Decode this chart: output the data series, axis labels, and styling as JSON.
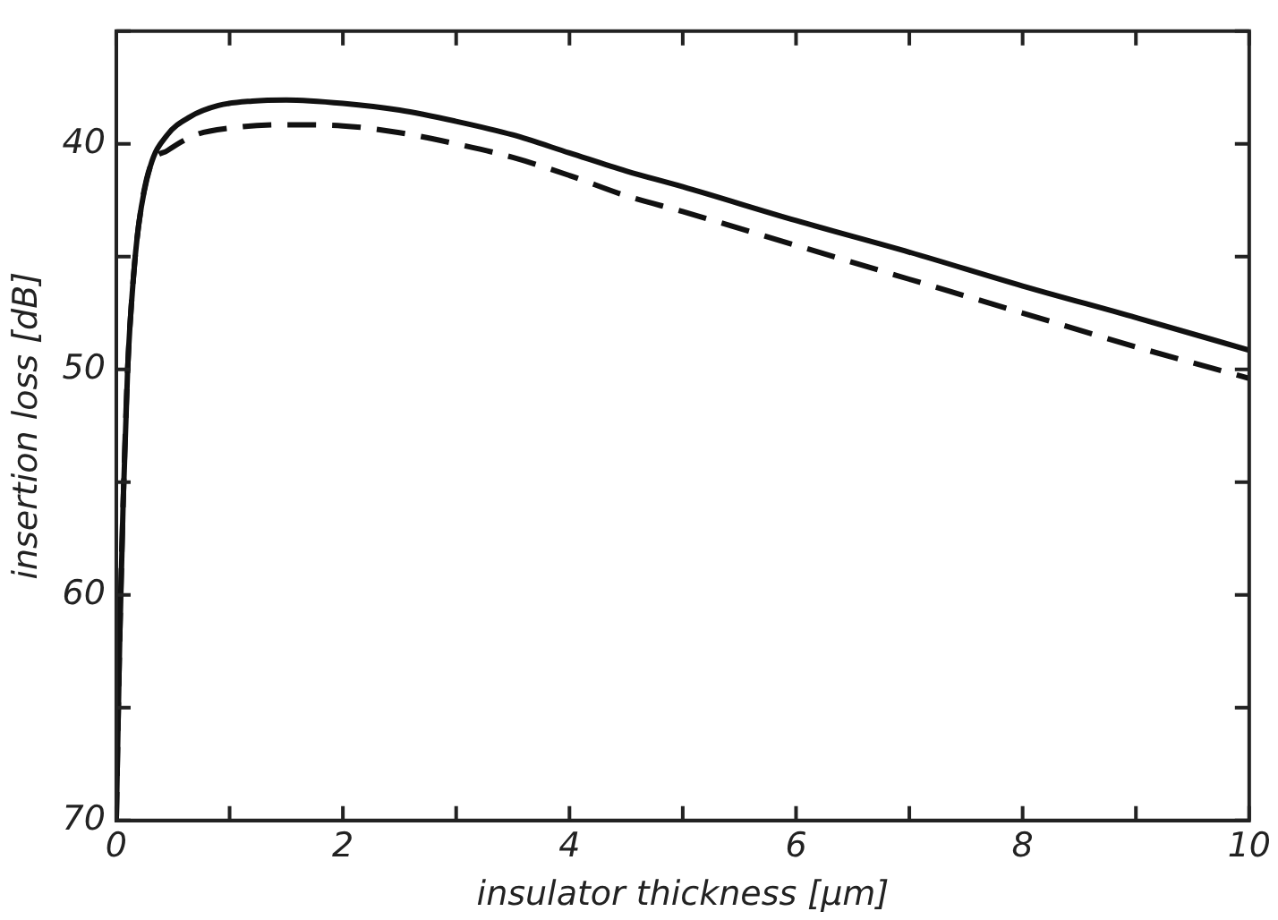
{
  "chart_data": {
    "type": "line",
    "xlabel": "insulator thickness [μm]",
    "ylabel": "insertion loss [dB]",
    "xlim": [
      0,
      10
    ],
    "ylim": [
      70,
      35
    ],
    "xticks": [
      0,
      {
        "value": 1,
        "label": null
      },
      2,
      {
        "value": 3,
        "label": null
      },
      4,
      {
        "value": 5,
        "label": null
      },
      6,
      {
        "value": 7,
        "label": null
      },
      8,
      {
        "value": 9,
        "label": null
      },
      10
    ],
    "yticks": [
      {
        "value": 35,
        "label": null
      },
      40,
      {
        "value": 45,
        "label": null
      },
      50,
      {
        "value": 55,
        "label": null
      },
      60,
      {
        "value": 65,
        "label": null
      },
      70
    ],
    "grid": false,
    "legend": false,
    "marker": "none",
    "series": [
      {
        "color": "#111111",
        "line_style": "solid",
        "x": [
          0,
          0.03,
          0.06,
          0.1,
          0.15,
          0.2,
          0.3,
          0.45,
          0.65,
          0.9,
          1.2,
          1.5,
          2,
          2.5,
          3,
          3.5,
          4,
          4.5,
          5,
          6,
          7,
          8,
          9,
          10
        ],
        "values": [
          70,
          62,
          56,
          50,
          46,
          43.5,
          41,
          39.6,
          38.8,
          38.3,
          38.1,
          38.05,
          38.2,
          38.5,
          39.0,
          39.6,
          40.4,
          41.2,
          41.9,
          43.4,
          44.8,
          46.3,
          47.7,
          49.15
        ]
      },
      {
        "color": "#111111",
        "line_style": "dashed",
        "x": [
          0,
          0.03,
          0.06,
          0.1,
          0.15,
          0.2,
          0.3,
          0.45,
          0.7,
          1,
          1.5,
          2,
          2.5,
          3,
          3.5,
          4,
          4.5,
          5,
          6,
          7,
          8,
          9,
          10
        ],
        "values": [
          70,
          62,
          56,
          50,
          46,
          43.5,
          41,
          40.3,
          39.6,
          39.3,
          39.15,
          39.2,
          39.5,
          40.0,
          40.6,
          41.4,
          42.3,
          43.0,
          44.5,
          46.0,
          47.5,
          49.0,
          50.4
        ]
      }
    ]
  }
}
